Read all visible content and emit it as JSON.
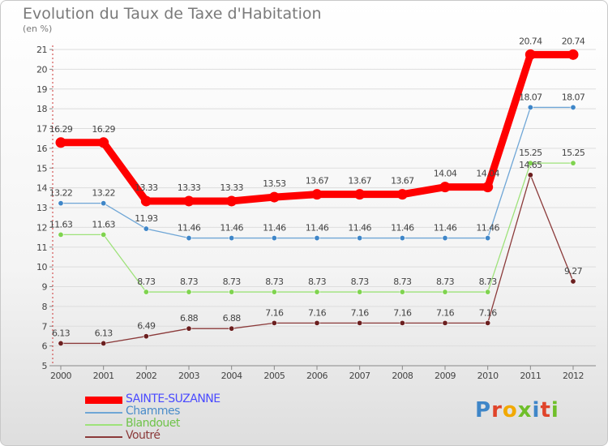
{
  "title": "Evolution du Taux de Taxe d'Habitation",
  "subtitle": "(en %)",
  "logo": {
    "text": "Proxiti",
    "colors": [
      "#3f86c8",
      "#e0442a",
      "#f2a900",
      "#6fbf2a",
      "#3f86c8",
      "#e0442a",
      "#6fbf2a"
    ]
  },
  "chart_data": {
    "type": "line",
    "title": "Evolution du Taux de Taxe d'Habitation",
    "ylabel": "(en %)",
    "xlabel": "",
    "x": [
      "2000",
      "2001",
      "2002",
      "2003",
      "2004",
      "2005",
      "2006",
      "2007",
      "2008",
      "2009",
      "2010",
      "2011",
      "2012"
    ],
    "ylim": [
      5,
      21
    ],
    "yticks": [
      5,
      6,
      7,
      8,
      9,
      10,
      11,
      12,
      13,
      14,
      15,
      16,
      17,
      18,
      19,
      20,
      21
    ],
    "grid": "horizontal",
    "legend_position": "bottom-left",
    "series": [
      {
        "name": "SAINTE-SUZANNE",
        "color": "#ff0000",
        "labelColor": "#4a4aff",
        "emphasis": true,
        "values": [
          16.29,
          16.29,
          13.33,
          13.33,
          13.33,
          13.53,
          13.67,
          13.67,
          13.67,
          14.04,
          14.04,
          20.74,
          20.74
        ],
        "labels": [
          "16.29",
          "16.29",
          "13.33",
          "13.33",
          "13.33",
          "13.53",
          "13.67",
          "13.67",
          "13.67",
          "14.04",
          "14.04",
          "20.74",
          "20.74"
        ]
      },
      {
        "name": "Chammes",
        "color": "#6fa6d6",
        "labelColor": "#4a8cc9",
        "marker": "#3f86c8",
        "values": [
          13.22,
          13.22,
          11.93,
          11.46,
          11.46,
          11.46,
          11.46,
          11.46,
          11.46,
          11.46,
          11.46,
          18.07,
          18.07
        ],
        "labels": [
          "13.22",
          "13.22",
          "11.93",
          "11.46",
          "11.46",
          "11.46",
          "11.46",
          "11.46",
          "11.46",
          "11.46",
          "11.46",
          "18.07",
          "18.07"
        ]
      },
      {
        "name": "Blandouet",
        "color": "#9ee27a",
        "labelColor": "#6fc34a",
        "marker": "#7fd34f",
        "values": [
          11.63,
          11.63,
          8.73,
          8.73,
          8.73,
          8.73,
          8.73,
          8.73,
          8.73,
          8.73,
          8.73,
          15.25,
          15.25
        ],
        "labels": [
          "11.63",
          "11.63",
          "8.73",
          "8.73",
          "8.73",
          "8.73",
          "8.73",
          "8.73",
          "8.73",
          "8.73",
          "8.73",
          "15.25",
          "15.25"
        ]
      },
      {
        "name": "Voutré",
        "color": "#8b3a3a",
        "labelColor": "#8b3a3a",
        "marker": "#6b1f1f",
        "values": [
          6.13,
          6.13,
          6.49,
          6.88,
          6.88,
          7.16,
          7.16,
          7.16,
          7.16,
          7.16,
          7.16,
          14.65,
          9.27
        ],
        "labels": [
          "6.13",
          "6.13",
          "6.49",
          "6.88",
          "6.88",
          "7.16",
          "7.16",
          "7.16",
          "7.16",
          "7.16",
          "7.16",
          "14.65",
          "9.27"
        ]
      }
    ]
  }
}
